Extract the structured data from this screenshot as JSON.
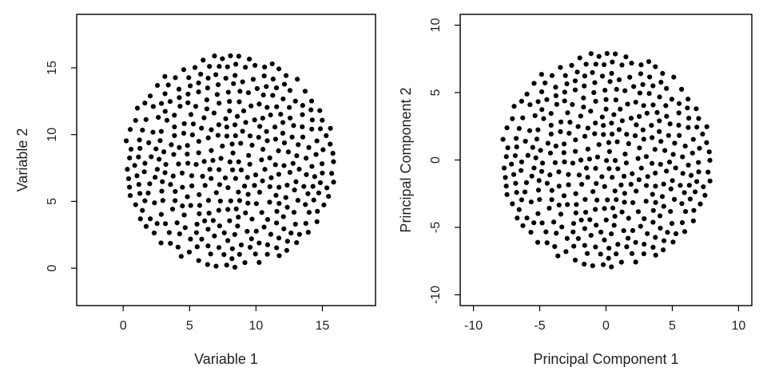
{
  "chart_data": [
    {
      "type": "scatter",
      "xlabel": "Variable 1",
      "ylabel": "Variable 2",
      "xlim": [
        -3.5,
        19.0
      ],
      "ylim": [
        -2.8,
        19.0
      ],
      "xticks": [
        0,
        5,
        10,
        15
      ],
      "yticks": [
        0,
        5,
        10,
        15
      ],
      "grid": false,
      "points": {
        "count": 420,
        "center": [
          8.0,
          8.0
        ],
        "radius": 8.0,
        "seed": 20240517
      }
    },
    {
      "type": "scatter",
      "xlabel": "Principal Component 1",
      "ylabel": "Principal Component 2",
      "xlim": [
        -11.0,
        11.0
      ],
      "ylim": [
        -10.8,
        10.8
      ],
      "xticks": [
        -10,
        -5,
        0,
        5,
        10
      ],
      "yticks": [
        -10,
        -5,
        0,
        5,
        10
      ],
      "grid": false,
      "points": {
        "count": 420,
        "center": [
          0.0,
          0.0
        ],
        "radius": 8.0,
        "seed": 20240517
      }
    }
  ]
}
